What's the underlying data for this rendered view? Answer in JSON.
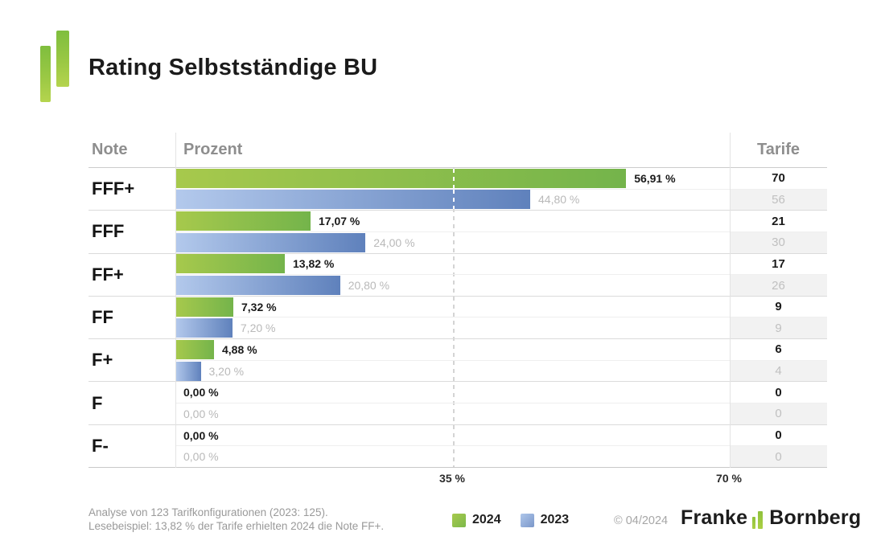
{
  "title": "Rating Selbstständige BU",
  "table": {
    "note_header": "Note",
    "prozent_header": "Prozent",
    "tarife_header": "Tarife"
  },
  "chart_data": {
    "type": "bar",
    "orientation": "horizontal",
    "title": "Rating Selbstständige BU",
    "categories": [
      "FFF+",
      "FFF",
      "FF+",
      "FF",
      "F+",
      "F",
      "F-"
    ],
    "series": [
      {
        "name": "2024",
        "color_start": "#a7c94c",
        "color_end": "#74b44b",
        "values": [
          56.91,
          17.07,
          13.82,
          7.32,
          4.88,
          0,
          0
        ],
        "labels": [
          "56,91 %",
          "17,07 %",
          "13,82 %",
          "7,32 %",
          "4,88 %",
          "0,00 %",
          "0,00 %"
        ],
        "tarife": [
          "70",
          "21",
          "17",
          "9",
          "6",
          "0",
          "0"
        ]
      },
      {
        "name": "2023",
        "color_start": "#b3c9ec",
        "color_end": "#5f81bc",
        "values": [
          44.8,
          24.0,
          20.8,
          7.2,
          3.2,
          0,
          0
        ],
        "labels": [
          "44,80 %",
          "24,00 %",
          "20,80 %",
          "7,20 %",
          "3,20 %",
          "0,00 %",
          "0,00 %"
        ],
        "tarife": [
          "56",
          "30",
          "26",
          "9",
          "4",
          "0",
          "0"
        ]
      }
    ],
    "xlim": [
      0,
      70
    ],
    "xticks": [
      {
        "value": 35,
        "label": "35 %"
      },
      {
        "value": 70,
        "label": "70 %"
      }
    ],
    "gridline_pct": 35,
    "grid": "dashed-vertical-at-35",
    "legend_position": "bottom"
  },
  "footer": {
    "note_line1": "Analyse von 123 Tarifkonfigurationen (2023: 125).",
    "note_line2": "Lesebeispiel: 13,82 % der Tarife erhielten 2024 die Note FF+.",
    "legend": [
      {
        "label": "2024",
        "color": "#8dc044"
      },
      {
        "label": "2023",
        "color": "#8aa5d4"
      }
    ],
    "copyright": "© 04/2024",
    "brand": {
      "left": "Franke",
      "right": "Bornberg"
    }
  }
}
